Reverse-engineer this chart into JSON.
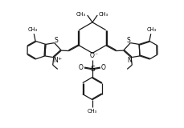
{
  "bg_color": "#ffffff",
  "line_color": "#1a1a1a",
  "lw": 0.9,
  "dg": 0.045,
  "figsize": [
    2.3,
    1.6
  ],
  "dpi": 100,
  "xlim": [
    0.0,
    10.0
  ],
  "ylim": [
    0.0,
    7.0
  ]
}
